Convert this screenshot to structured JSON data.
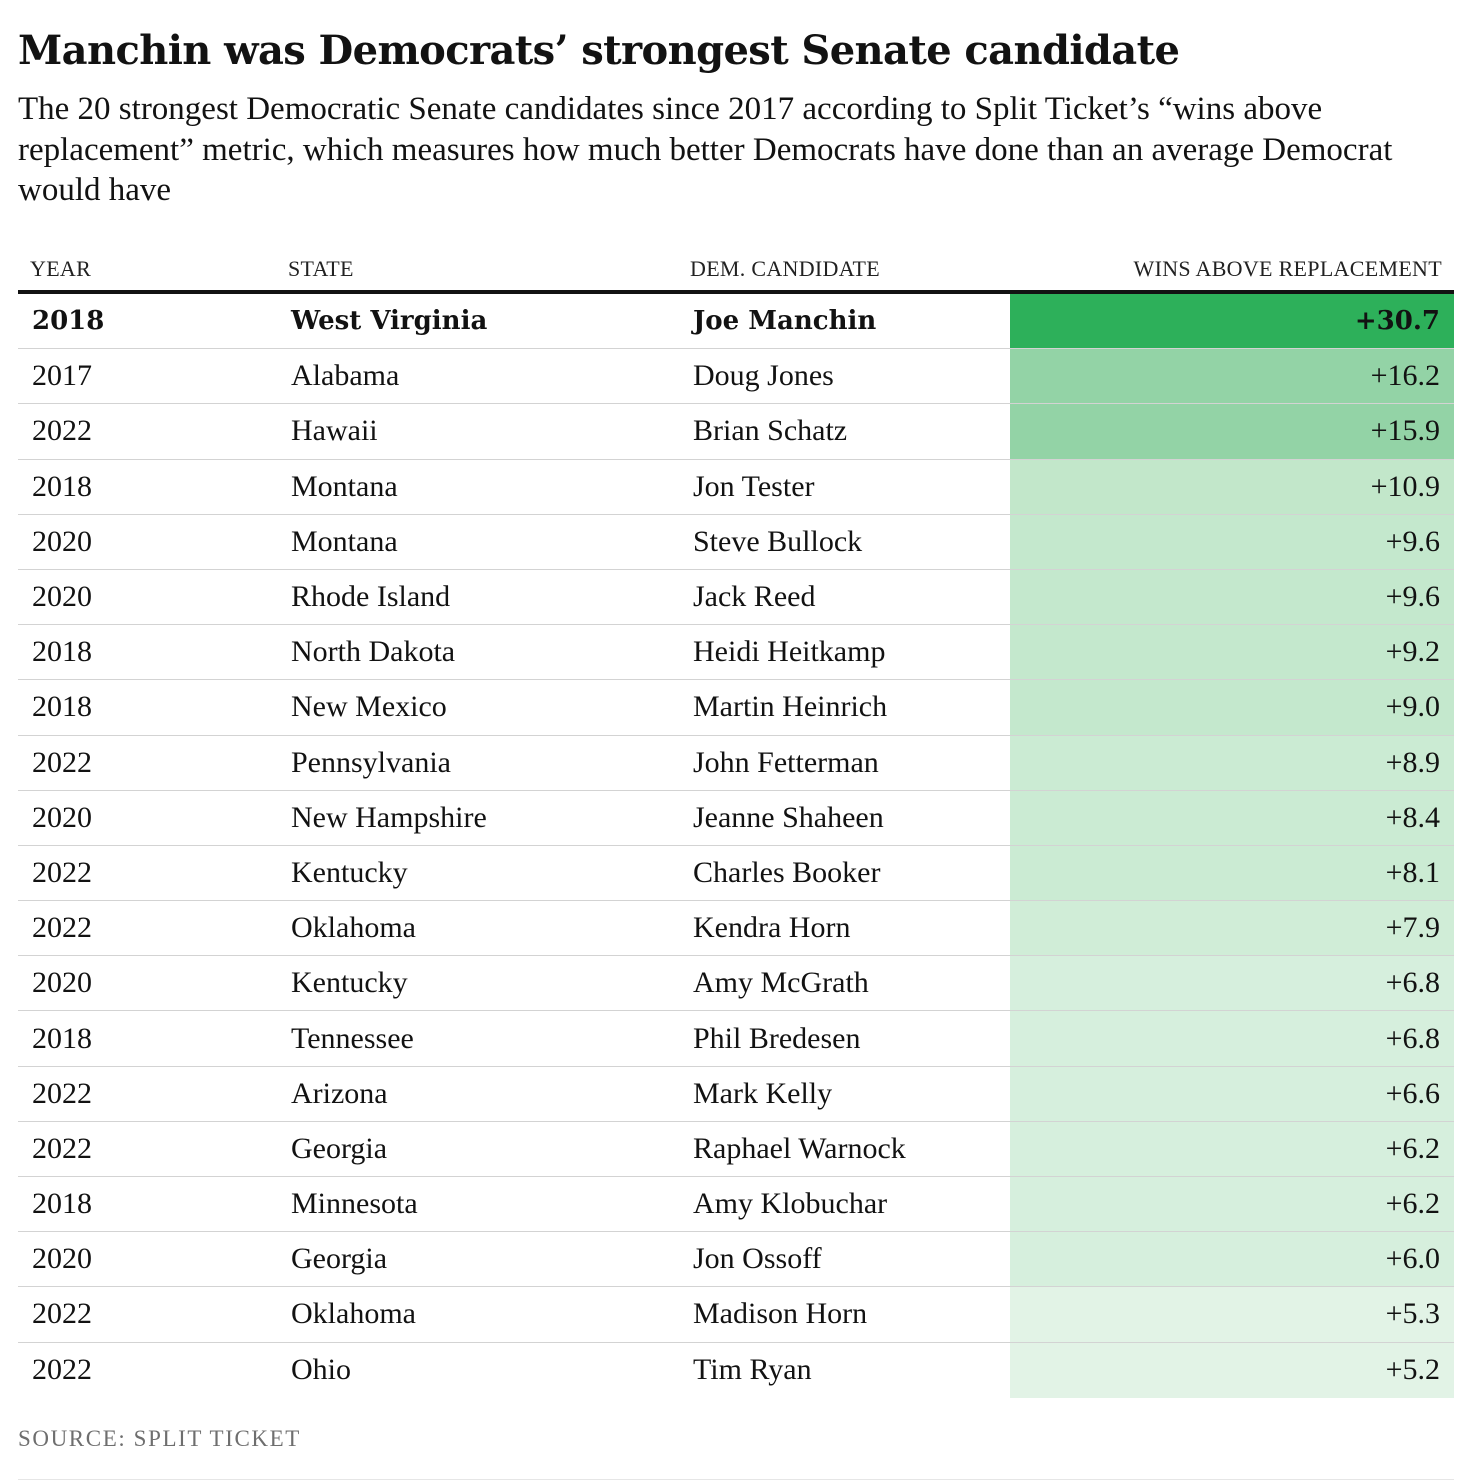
{
  "title": "Manchin was Democrats’ strongest Senate candidate",
  "subtitle": "The 20 strongest Democratic Senate candidates since 2017 according to Split Ticket’s “wins above replacement” metric, which measures how much better Democrats have done than an average Democrat would have",
  "source": "SOURCE: SPLIT TICKET",
  "colors": {
    "scale_max": "#2db05a",
    "scale_low": "#e2f3e6",
    "text": "#121212",
    "rule": "#d3d3d3"
  },
  "chart_data": {
    "type": "table",
    "columns": [
      "YEAR",
      "STATE",
      "DEM. CANDIDATE",
      "WINS ABOVE REPLACEMENT"
    ],
    "rows": [
      {
        "year": "2018",
        "state": "West Virginia",
        "candidate": "Joe Manchin",
        "war": 30.7,
        "war_label": "+30.7",
        "bold": true
      },
      {
        "year": "2017",
        "state": "Alabama",
        "candidate": "Doug Jones",
        "war": 16.2,
        "war_label": "+16.2"
      },
      {
        "year": "2022",
        "state": "Hawaii",
        "candidate": "Brian Schatz",
        "war": 15.9,
        "war_label": "+15.9"
      },
      {
        "year": "2018",
        "state": "Montana",
        "candidate": "Jon Tester",
        "war": 10.9,
        "war_label": "+10.9"
      },
      {
        "year": "2020",
        "state": "Montana",
        "candidate": "Steve Bullock",
        "war": 9.6,
        "war_label": "+9.6"
      },
      {
        "year": "2020",
        "state": "Rhode Island",
        "candidate": "Jack Reed",
        "war": 9.6,
        "war_label": "+9.6"
      },
      {
        "year": "2018",
        "state": "North Dakota",
        "candidate": "Heidi Heitkamp",
        "war": 9.2,
        "war_label": "+9.2"
      },
      {
        "year": "2018",
        "state": "New Mexico",
        "candidate": "Martin Heinrich",
        "war": 9.0,
        "war_label": "+9.0"
      },
      {
        "year": "2022",
        "state": "Pennsylvania",
        "candidate": "John Fetterman",
        "war": 8.9,
        "war_label": "+8.9"
      },
      {
        "year": "2020",
        "state": "New Hampshire",
        "candidate": "Jeanne Shaheen",
        "war": 8.4,
        "war_label": "+8.4"
      },
      {
        "year": "2022",
        "state": "Kentucky",
        "candidate": "Charles Booker",
        "war": 8.1,
        "war_label": "+8.1"
      },
      {
        "year": "2022",
        "state": "Oklahoma",
        "candidate": "Kendra Horn",
        "war": 7.9,
        "war_label": "+7.9"
      },
      {
        "year": "2020",
        "state": "Kentucky",
        "candidate": "Amy McGrath",
        "war": 6.8,
        "war_label": "+6.8"
      },
      {
        "year": "2018",
        "state": "Tennessee",
        "candidate": "Phil Bredesen",
        "war": 6.8,
        "war_label": "+6.8"
      },
      {
        "year": "2022",
        "state": "Arizona",
        "candidate": "Mark Kelly",
        "war": 6.6,
        "war_label": "+6.6"
      },
      {
        "year": "2022",
        "state": "Georgia",
        "candidate": "Raphael Warnock",
        "war": 6.2,
        "war_label": "+6.2"
      },
      {
        "year": "2018",
        "state": "Minnesota",
        "candidate": "Amy Klobuchar",
        "war": 6.2,
        "war_label": "+6.2"
      },
      {
        "year": "2020",
        "state": "Georgia",
        "candidate": "Jon Ossoff",
        "war": 6.0,
        "war_label": "+6.0"
      },
      {
        "year": "2022",
        "state": "Oklahoma",
        "candidate": "Madison Horn",
        "war": 5.3,
        "war_label": "+5.3"
      },
      {
        "year": "2022",
        "state": "Ohio",
        "candidate": "Tim Ryan",
        "war": 5.2,
        "war_label": "+5.2"
      }
    ]
  }
}
